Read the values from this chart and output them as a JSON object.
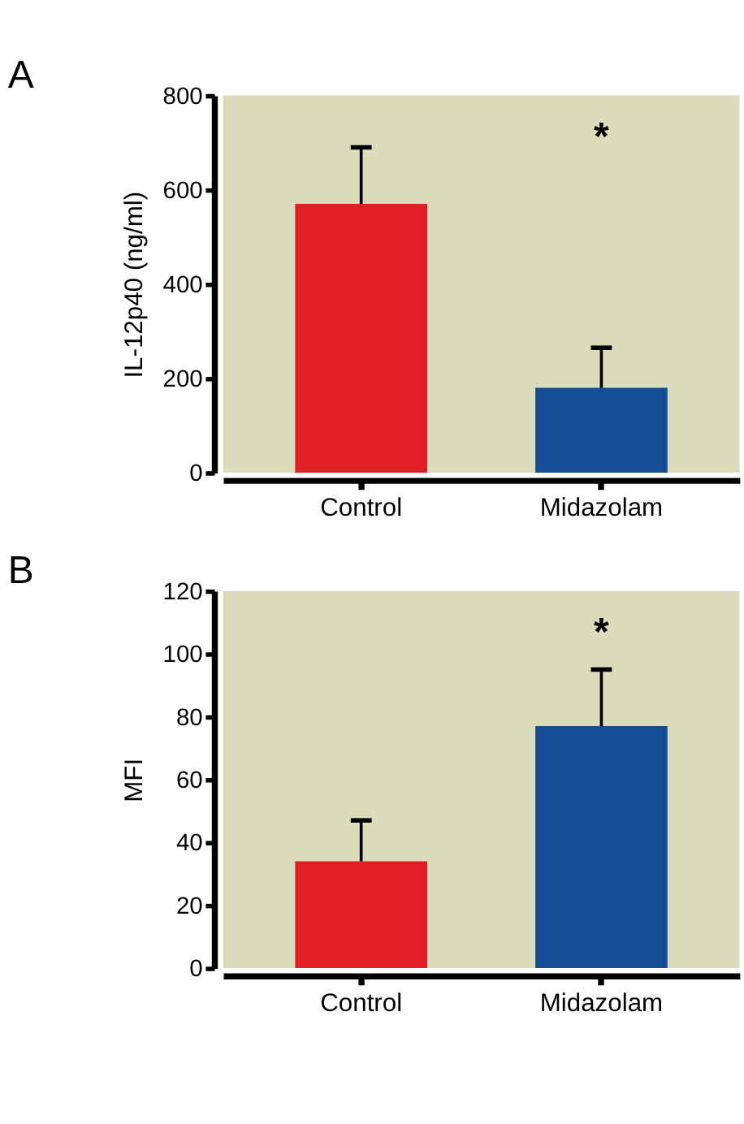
{
  "chart_data": [
    {
      "type": "bar",
      "title": "A",
      "ylabel": "IL-12p40 (ng/ml)",
      "categories": [
        "Control",
        "Midazolam"
      ],
      "values": [
        570,
        180
      ],
      "colors": [
        "#e01e25",
        "#144c96"
      ],
      "errors": [
        [
          570,
          690
        ],
        [
          180,
          265
        ]
      ],
      "ylim": [
        0,
        800
      ],
      "yticks": [
        0,
        200,
        400,
        600,
        800
      ],
      "grid": false,
      "annotations": [
        "*"
      ]
    },
    {
      "type": "bar",
      "title": "B",
      "ylabel": "MFI",
      "categories": [
        "Control",
        "Midazolam"
      ],
      "values": [
        34,
        77
      ],
      "colors": [
        "#e01e25",
        "#144c96"
      ],
      "errors": [
        [
          34,
          47
        ],
        [
          77,
          95
        ]
      ],
      "ylim": [
        0,
        120
      ],
      "yticks": [
        0,
        20,
        40,
        60,
        80,
        100,
        120
      ],
      "grid": false,
      "annotations": [
        "*"
      ]
    }
  ]
}
